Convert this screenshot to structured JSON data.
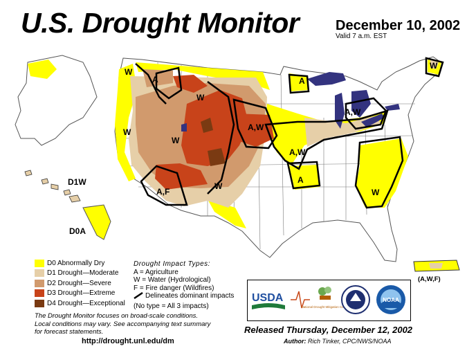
{
  "header": {
    "title": "U.S. Drought Monitor",
    "date": "December 10, 2002",
    "valid": "Valid 7 a.m. EST"
  },
  "colors": {
    "d0": "#FFFF00",
    "d1": "#E6CFA8",
    "d2": "#D19A6D",
    "d3": "#C8431A",
    "d4": "#7A3A12",
    "water": "#33337F",
    "boundary": "#000000"
  },
  "legend": {
    "items": [
      {
        "label": "D0 Abnormally Dry",
        "color": "#FFFF00"
      },
      {
        "label": "D1 Drought—Moderate",
        "color": "#E6CFA8"
      },
      {
        "label": "D2 Drought—Severe",
        "color": "#D19A6D"
      },
      {
        "label": "D3 Drought—Extreme",
        "color": "#C8431A"
      },
      {
        "label": "D4 Drought—Exceptional",
        "color": "#7A3A12"
      }
    ]
  },
  "impacts": {
    "heading": "Drought Impact Types:",
    "a": "A = Agriculture",
    "w": "W = Water (Hydrological)",
    "f": "F = Fire danger (Wildfires)",
    "delineates": "Delineates dominant impacts",
    "none": "(No type = All 3 impacts)"
  },
  "notes": {
    "focus_line1": "The Drought Monitor focuses on broad-scale conditions.",
    "focus_line2": "Local conditions may vary. See accompanying text summary",
    "focus_line3": "for forecast statements.",
    "url": "http://drought.unl.edu/dm"
  },
  "footer": {
    "released": "Released Thursday, December 12, 2002",
    "author_label": "Author:",
    "author": "Rich Tinker, CPC/NWS/NOAA"
  },
  "logos": {
    "usda": "USDA",
    "ndmc": "National Drought Mitigation Center",
    "noaa": "NOAA"
  },
  "map_labels": {
    "hawaii_d1w": "D1W",
    "alaska_d0a": "D0A",
    "puerto_rico": "(A,W,F)",
    "w_nw": "W",
    "a_mt": "A",
    "w_nd": "W",
    "w_ca": "W",
    "w_ut": "W",
    "aw_ne": "A,W",
    "aw_mo": "A,W",
    "a_ar": "A",
    "af_az": "A,F",
    "w_tx": "W",
    "a_mn": "A",
    "aw_mi": "A,W",
    "w_me": "W",
    "w_ga": "W"
  }
}
